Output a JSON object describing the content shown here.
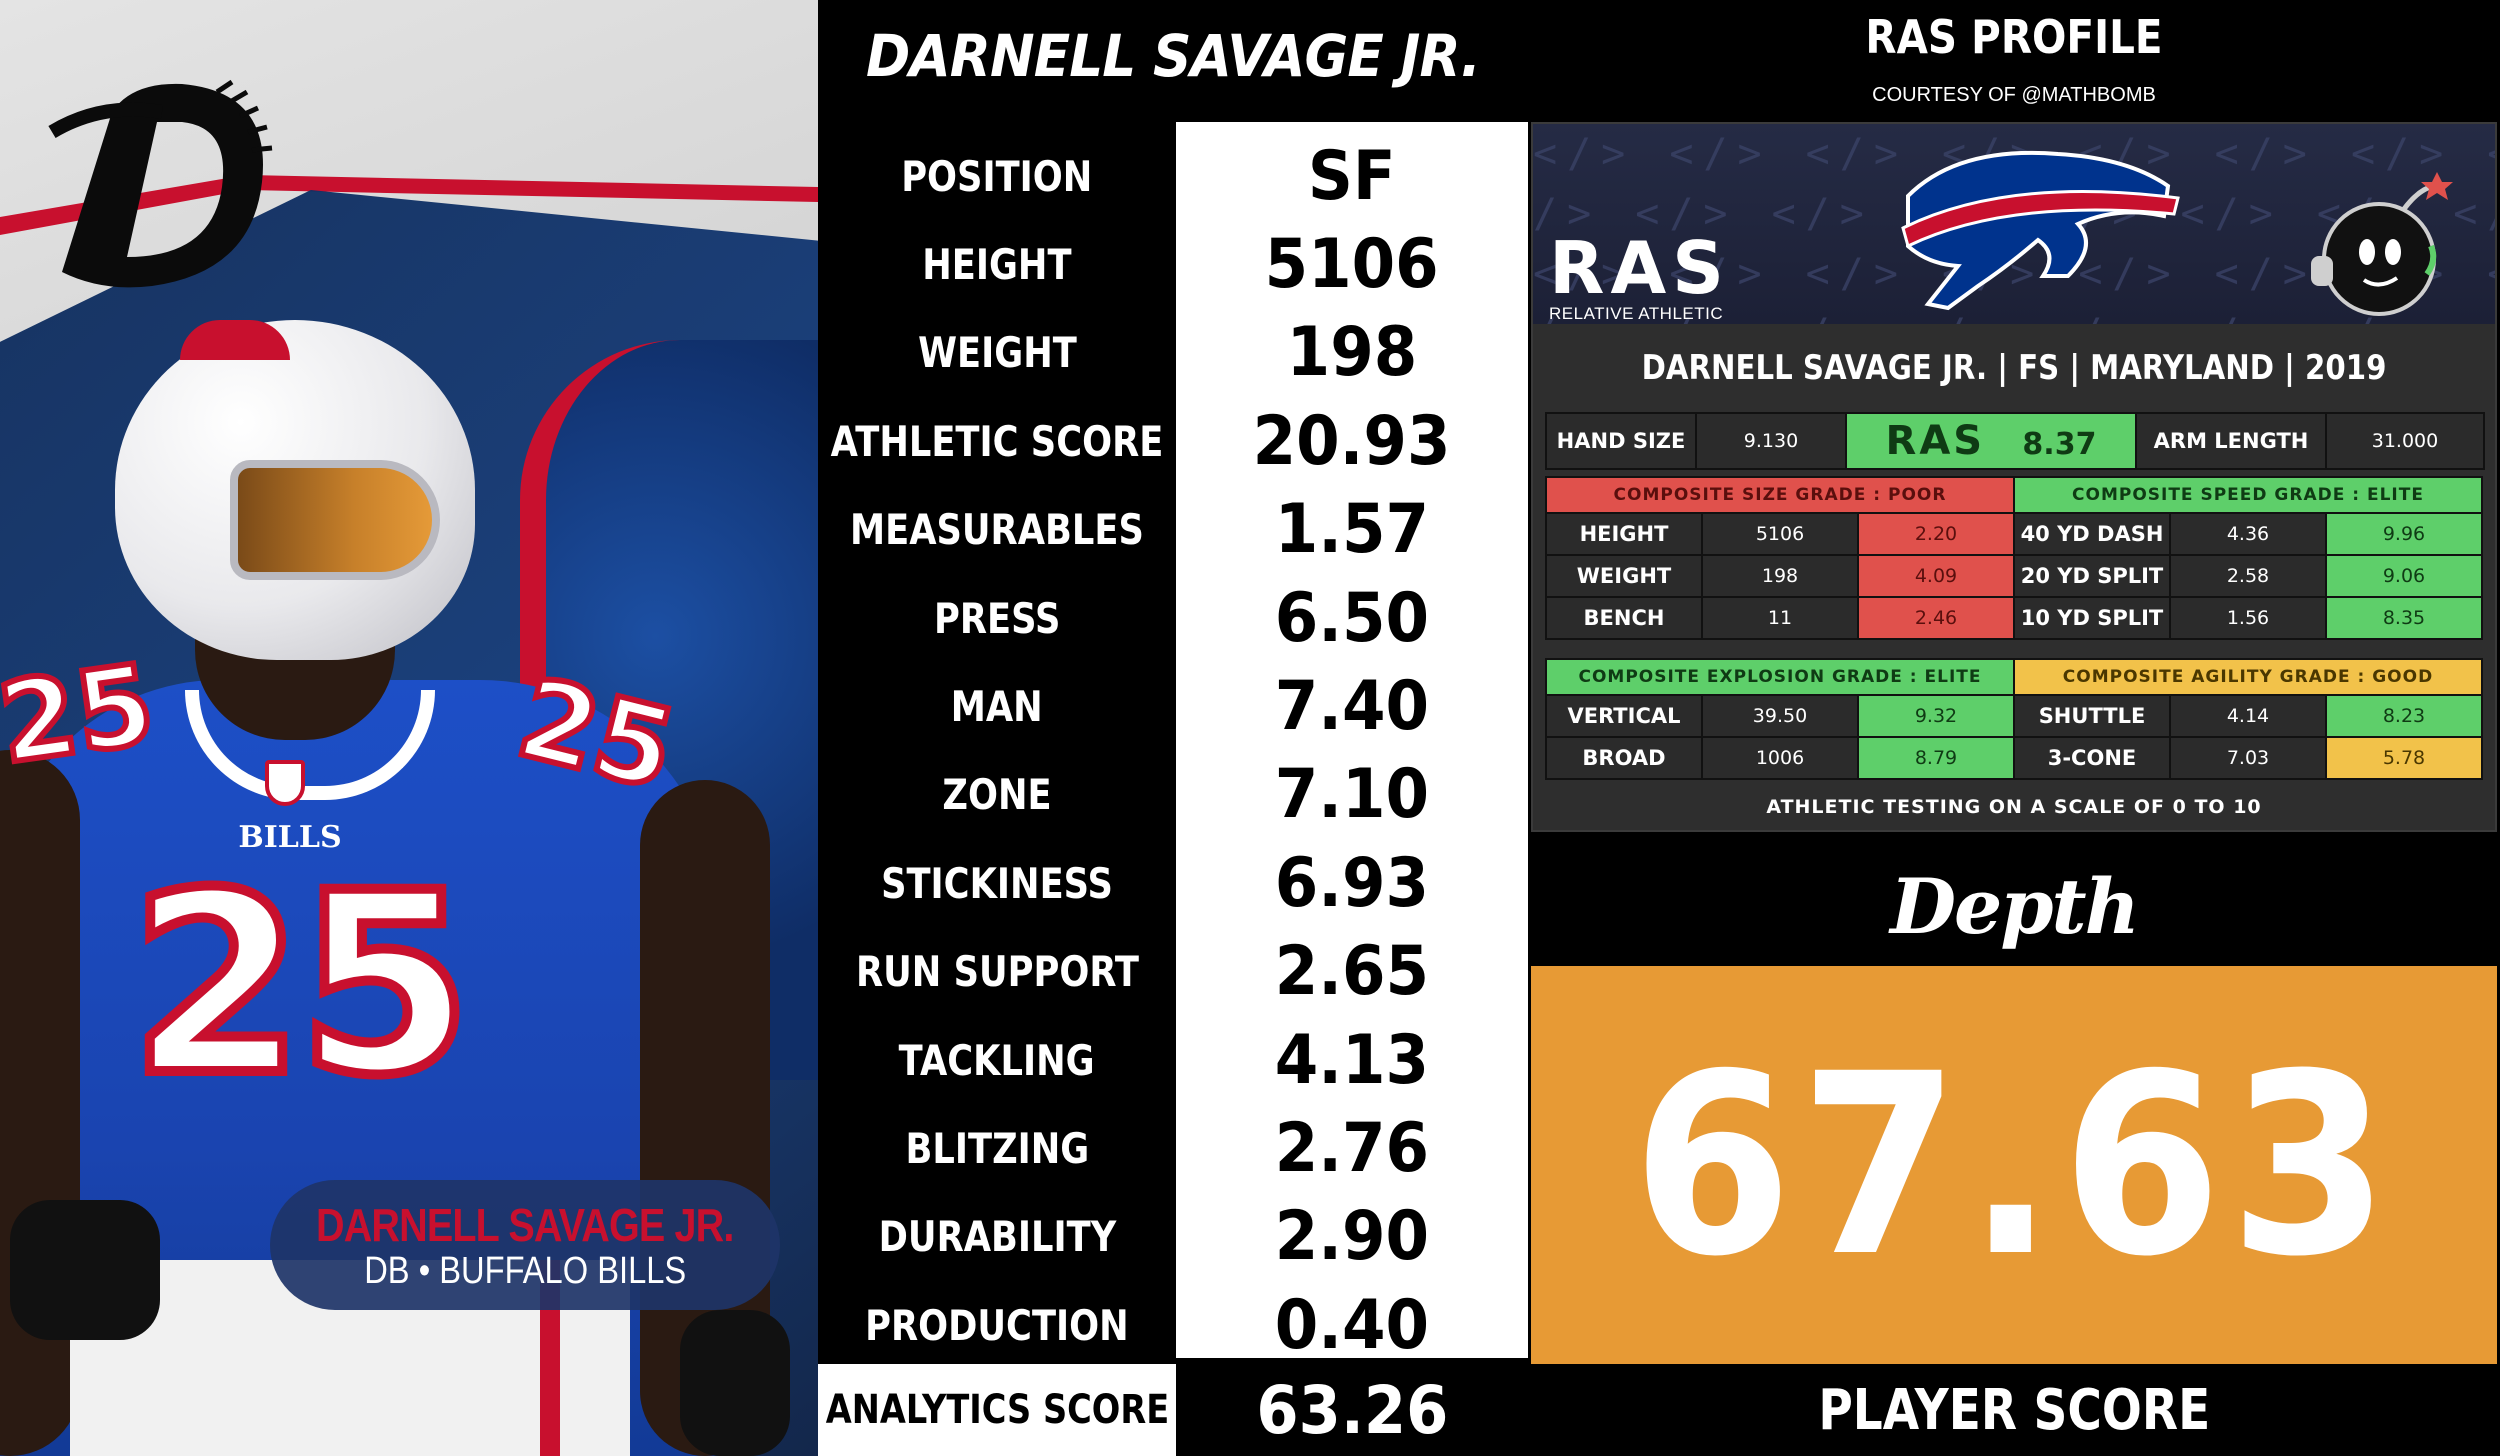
{
  "header": {
    "player_name": "DARNELL SAVAGE JR.",
    "ras_title": "RAS PROFILE",
    "ras_courtesy": "COURTESY OF @MATHBOMB"
  },
  "photo": {
    "badge_name": "DARNELL SAVAGE JR.",
    "badge_sub": "DB • BUFFALO BILLS",
    "jersey_number": "25",
    "team_word": "BILLS",
    "brand_colors": {
      "blue": "#1d4fc7",
      "red": "#c8102e",
      "navy": "#0c2a5a"
    }
  },
  "stats": [
    {
      "label": "POSITION",
      "value": "SF"
    },
    {
      "label": "HEIGHT",
      "value": "5106"
    },
    {
      "label": "WEIGHT",
      "value": "198"
    },
    {
      "label": "ATHLETIC SCORE",
      "value": "20.93"
    },
    {
      "label": "MEASURABLES",
      "value": "1.57"
    },
    {
      "label": "PRESS",
      "value": "6.50"
    },
    {
      "label": "MAN",
      "value": "7.40"
    },
    {
      "label": "ZONE",
      "value": "7.10"
    },
    {
      "label": "STICKINESS",
      "value": "6.93"
    },
    {
      "label": "RUN SUPPORT",
      "value": "2.65"
    },
    {
      "label": "TACKLING",
      "value": "4.13"
    },
    {
      "label": "BLITZING",
      "value": "2.76"
    },
    {
      "label": "DURABILITY",
      "value": "2.90"
    },
    {
      "label": "PRODUCTION",
      "value": "0.40"
    }
  ],
  "analytics": {
    "label": "ANALYTICS SCORE",
    "value": "63.26"
  },
  "ras": {
    "logo_text": "RAS",
    "logo_sub": "RELATIVE ATHLETIC SCORE",
    "id_line": "DARNELL SAVAGE JR. | FS | MARYLAND | 2019",
    "hand_size_label": "HAND SIZE",
    "hand_size_value": "9.130",
    "ras_score": "8.37",
    "arm_length_label": "ARM LENGTH",
    "arm_length_value": "31.000",
    "size_grade": "COMPOSITE SIZE GRADE : POOR",
    "speed_grade": "COMPOSITE SPEED GRADE : ELITE",
    "explosion_grade": "COMPOSITE EXPLOSION GRADE : ELITE",
    "agility_grade": "COMPOSITE AGILITY GRADE : GOOD",
    "size_rows": [
      {
        "label": "HEIGHT",
        "value": "5106",
        "score": "2.20"
      },
      {
        "label": "WEIGHT",
        "value": "198",
        "score": "4.09"
      },
      {
        "label": "BENCH",
        "value": "11",
        "score": "2.46"
      }
    ],
    "speed_rows": [
      {
        "label": "40 YD DASH",
        "value": "4.36",
        "score": "9.96"
      },
      {
        "label": "20 YD SPLIT",
        "value": "2.58",
        "score": "9.06"
      },
      {
        "label": "10 YD SPLIT",
        "value": "1.56",
        "score": "8.35"
      }
    ],
    "explosion_rows": [
      {
        "label": "VERTICAL",
        "value": "39.50",
        "score": "9.32"
      },
      {
        "label": "BROAD",
        "value": "1006",
        "score": "8.79"
      }
    ],
    "agility_rows": [
      {
        "label": "SHUTTLE",
        "value": "4.14",
        "score": "8.23"
      },
      {
        "label": "3-CONE",
        "value": "7.03",
        "score": "5.78"
      }
    ],
    "footnote": "ATHLETIC TESTING ON A SCALE OF 0 TO 10",
    "grade_colors": {
      "poor": "#e0514c",
      "elite": "#5ecf6a",
      "good": "#f2c24a"
    }
  },
  "depth": {
    "logo_word": "Depth",
    "player_score": "67.63",
    "player_score_label": "PLAYER SCORE",
    "score_color": "#e79a35"
  }
}
